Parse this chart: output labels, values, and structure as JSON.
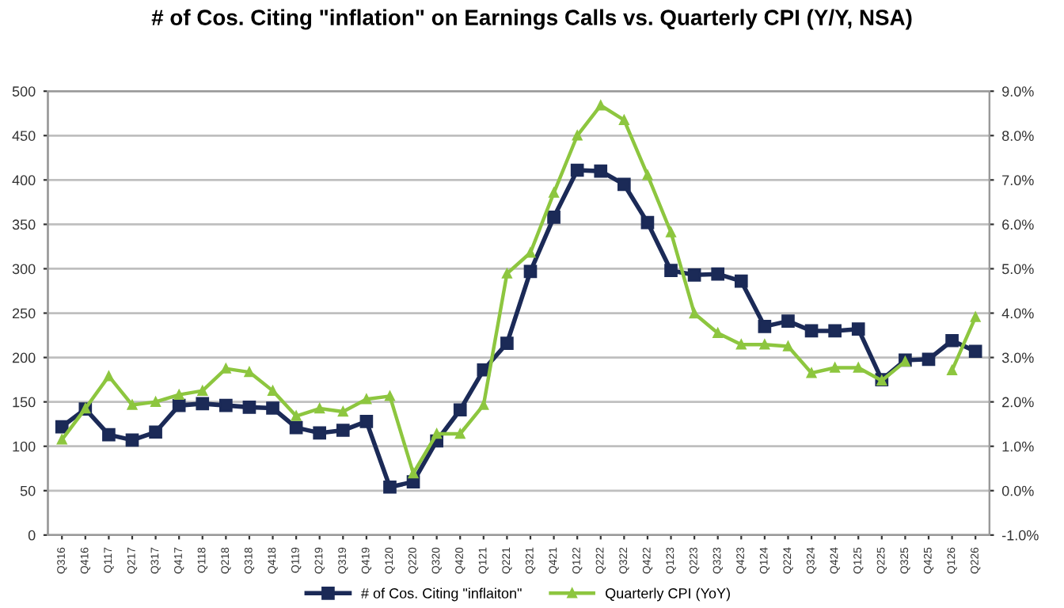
{
  "chart_data": {
    "type": "line",
    "title": "# of Cos. Citing \"inflation\" on Earnings Calls vs. Quarterly CPI (Y/Y, NSA)",
    "categories": [
      "Q316",
      "Q416",
      "Q117",
      "Q217",
      "Q317",
      "Q417",
      "Q118",
      "Q218",
      "Q318",
      "Q418",
      "Q119",
      "Q219",
      "Q319",
      "Q419",
      "Q120",
      "Q220",
      "Q320",
      "Q420",
      "Q121",
      "Q221",
      "Q321",
      "Q421",
      "Q122",
      "Q222",
      "Q322",
      "Q422",
      "Q123",
      "Q223",
      "Q323",
      "Q423",
      "Q124",
      "Q224",
      "Q324",
      "Q424",
      "Q125",
      "Q225",
      "Q325",
      "Q425",
      "Q126",
      "Q226"
    ],
    "series": [
      {
        "name": "# of Cos. Citing \"inflaiton\"",
        "color": "#1b2a57",
        "marker": "square",
        "values": [
          122,
          142,
          113,
          107,
          116,
          146,
          148,
          146,
          144,
          143,
          121,
          115,
          118,
          128,
          54,
          60,
          106,
          141,
          186,
          216,
          297,
          358,
          411,
          410,
          395,
          352,
          298,
          293,
          294,
          286,
          235,
          241,
          230,
          230,
          232,
          175,
          197,
          198,
          219,
          207
        ]
      },
      {
        "name": "Quarterly CPI (YoY)",
        "color": "#8dc63f",
        "marker": "triangle",
        "axis": "y2",
        "values": [
          1.15,
          1.85,
          2.58,
          1.93,
          2.0,
          2.16,
          2.25,
          2.75,
          2.67,
          2.25,
          1.68,
          1.85,
          1.78,
          2.06,
          2.13,
          0.39,
          1.28,
          1.28,
          1.93,
          4.89,
          5.36,
          6.71,
          8.0,
          8.68,
          8.35,
          7.11,
          5.82,
          3.99,
          3.55,
          3.29,
          3.29,
          3.25,
          2.65,
          2.77,
          2.77,
          2.48,
          2.91,
          null,
          2.71,
          3.91
        ]
      }
    ],
    "ylim": [
      0,
      500
    ],
    "yticks": [
      0,
      50,
      100,
      150,
      200,
      250,
      300,
      350,
      400,
      450,
      500
    ],
    "y2lim": [
      -1,
      9
    ],
    "y2ticks": [
      {
        "value": -1,
        "label": "-1.0%"
      },
      {
        "value": 0,
        "label": "0.0%"
      },
      {
        "value": 1,
        "label": "1.0%"
      },
      {
        "value": 2,
        "label": "2.0%"
      },
      {
        "value": 3,
        "label": "3.0%"
      },
      {
        "value": 4,
        "label": "4.0%"
      },
      {
        "value": 5,
        "label": "5.0%"
      },
      {
        "value": 6,
        "label": "6.0%"
      },
      {
        "value": 7,
        "label": "7.0%"
      },
      {
        "value": 8,
        "label": "8.0%"
      },
      {
        "value": 9,
        "label": "9.0%"
      }
    ],
    "grid": "y",
    "legend": "bottom"
  }
}
